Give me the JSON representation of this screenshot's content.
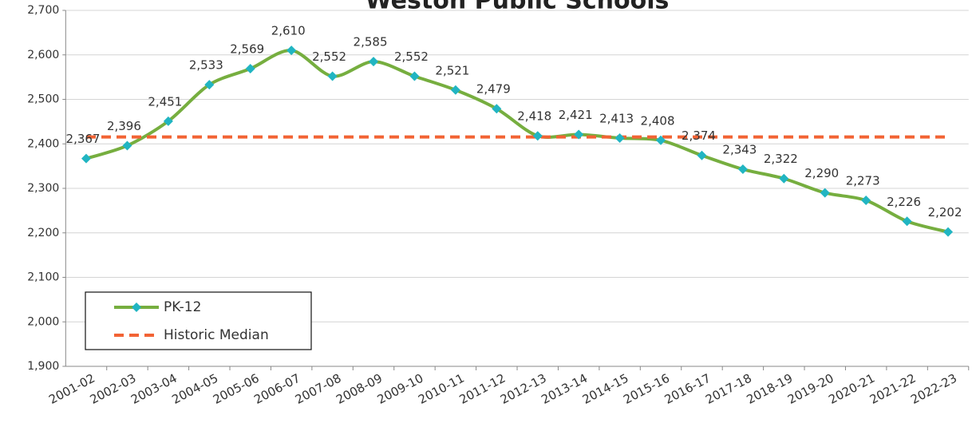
{
  "chart_data": {
    "type": "line",
    "title": "Weston Public Schools",
    "categories": [
      "2001-02",
      "2002-03",
      "2003-04",
      "2004-05",
      "2005-06",
      "2006-07",
      "2007-08",
      "2008-09",
      "2009-10",
      "2010-11",
      "2011-12",
      "2012-13",
      "2013-14",
      "2014-15",
      "2015-16",
      "2016-17",
      "2017-18",
      "2018-19",
      "2019-20",
      "2020-21",
      "2021-22",
      "2022-23"
    ],
    "series": [
      {
        "name": "PK-12",
        "color": "#76ae3f",
        "marker_color": "#21b5c2",
        "values": [
          2367,
          2396,
          2451,
          2533,
          2569,
          2610,
          2552,
          2585,
          2552,
          2521,
          2479,
          2418,
          2421,
          2413,
          2408,
          2374,
          2343,
          2322,
          2290,
          2273,
          2226,
          2202
        ],
        "value_labels": [
          "2,367",
          "2,396",
          "2,451",
          "2,533",
          "2,569",
          "2,610",
          "2,552",
          "2,585",
          "2,552",
          "2,521",
          "2,479",
          "2,418",
          "2,421",
          "2,413",
          "2,408",
          "2,374",
          "2,343",
          "2,322",
          "2,290",
          "2,273",
          "2,226",
          "2,202"
        ]
      },
      {
        "name": "Historic Median",
        "color": "#f26334",
        "dashed": true,
        "value": 2415.5
      }
    ],
    "ylim": [
      1900,
      2700
    ],
    "yticks": [
      {
        "value": 1900,
        "label": "1,900"
      },
      {
        "value": 2000,
        "label": "2,000"
      },
      {
        "value": 2100,
        "label": "2,100"
      },
      {
        "value": 2200,
        "label": "2,200"
      },
      {
        "value": 2300,
        "label": "2,300"
      },
      {
        "value": 2400,
        "label": "2,400"
      },
      {
        "value": 2500,
        "label": "2,500"
      },
      {
        "value": 2600,
        "label": "2,600"
      },
      {
        "value": 2700,
        "label": "2,700"
      }
    ],
    "grid": true,
    "legend": "lower left"
  }
}
